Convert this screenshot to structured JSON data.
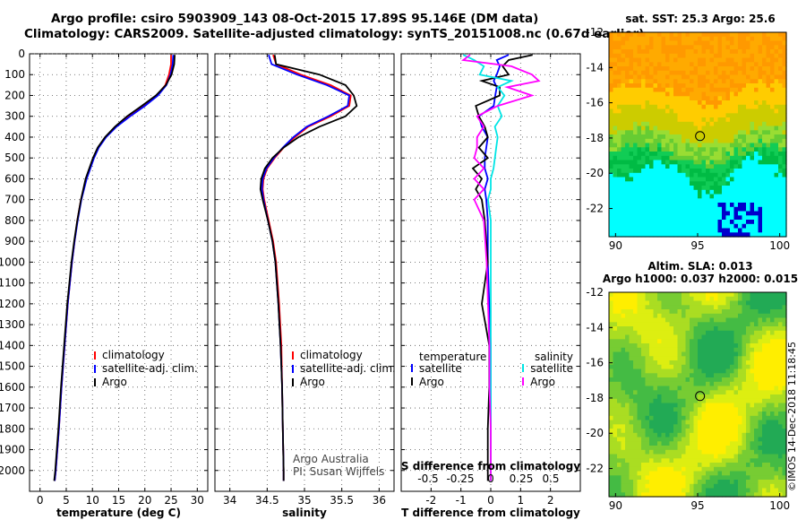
{
  "header": {
    "title_line1": "Argo profile: csiro 5903909_143 08-Oct-2015 17.89S 95.146E (DM data)",
    "title_line2": "Climatology: CARS2009. Satellite-adjusted climatology: synTS_20151008.nc (0.67d earlier)"
  },
  "footer": {
    "stamp": "©IMOS 14-Dec-2018 11:18:45"
  },
  "colors": {
    "climatology": "#ff0000",
    "satellite": "#0000ff",
    "argo": "#000000",
    "sal_satellite": "#00e5e5",
    "sal_argo": "#ff00ff"
  },
  "chart_data": [
    {
      "type": "line",
      "xlabel": "temperature (deg C)",
      "ylim": [
        0,
        2100
      ],
      "yticks": [
        0,
        100,
        200,
        300,
        400,
        500,
        600,
        700,
        800,
        900,
        1000,
        1100,
        1200,
        1300,
        1400,
        1500,
        1600,
        1700,
        1800,
        1900,
        2000
      ],
      "xlim": [
        -2,
        32
      ],
      "xticks": [
        0,
        5,
        10,
        15,
        20,
        25,
        30
      ],
      "legend": {
        "placement": "lower-center",
        "entries": [
          "climatology",
          "satellite-adj. clim.",
          "Argo"
        ]
      },
      "grid": true,
      "y_inverted": true,
      "depth": [
        5,
        50,
        100,
        150,
        200,
        250,
        300,
        350,
        400,
        450,
        500,
        600,
        700,
        800,
        900,
        1000,
        1200,
        1400,
        1600,
        1800,
        2000,
        2050
      ],
      "series": [
        {
          "name": "climatology",
          "values": [
            25.0,
            25.0,
            24.6,
            23.9,
            22.3,
            19.9,
            17.0,
            14.5,
            12.5,
            11.1,
            10.2,
            8.8,
            7.8,
            7.1,
            6.6,
            6.1,
            5.3,
            4.7,
            4.1,
            3.6,
            3.0,
            2.8
          ]
        },
        {
          "name": "satellite-adj. clim.",
          "values": [
            25.4,
            25.3,
            24.9,
            24.1,
            22.5,
            20.0,
            17.2,
            14.6,
            12.6,
            11.2,
            10.3,
            8.9,
            7.9,
            7.2,
            6.6,
            6.1,
            5.3,
            4.7,
            4.1,
            3.6,
            3.0,
            2.8
          ]
        },
        {
          "name": "Argo",
          "values": [
            25.7,
            25.6,
            25.1,
            24.0,
            22.1,
            19.4,
            16.6,
            14.3,
            12.4,
            11.0,
            10.1,
            8.7,
            7.8,
            7.1,
            6.5,
            6.0,
            5.2,
            4.6,
            4.0,
            3.5,
            2.9,
            2.7
          ]
        }
      ]
    },
    {
      "type": "line",
      "xlabel": "salinity",
      "ylim": [
        0,
        2100
      ],
      "xlim": [
        33.8,
        36.2
      ],
      "xticks": [
        34,
        34.5,
        35,
        35.5,
        36
      ],
      "legend": {
        "placement": "lower-center",
        "entries": [
          "climatology",
          "satellite-adj. clim.",
          "Argo"
        ]
      },
      "grid": true,
      "y_inverted": true,
      "annotation": [
        "Argo Australia",
        "PI: Susan Wijffels"
      ],
      "depth": [
        5,
        50,
        100,
        150,
        200,
        250,
        300,
        350,
        400,
        450,
        500,
        550,
        600,
        650,
        700,
        800,
        900,
        1000,
        1200,
        1400,
        1600,
        1800,
        2000,
        2050
      ],
      "series": [
        {
          "name": "climatology",
          "values": [
            34.58,
            34.62,
            34.95,
            35.35,
            35.62,
            35.6,
            35.35,
            35.05,
            34.87,
            34.72,
            34.6,
            34.5,
            34.45,
            34.44,
            34.46,
            34.52,
            34.58,
            34.62,
            34.66,
            34.69,
            34.7,
            34.71,
            34.72,
            34.72
          ]
        },
        {
          "name": "satellite-adj. clim.",
          "values": [
            34.52,
            34.56,
            34.9,
            35.3,
            35.6,
            35.58,
            35.32,
            35.03,
            34.85,
            34.71,
            34.59,
            34.49,
            34.44,
            34.43,
            34.45,
            34.51,
            34.57,
            34.61,
            34.65,
            34.68,
            34.7,
            34.71,
            34.72,
            34.72
          ]
        },
        {
          "name": "Argo",
          "values": [
            34.6,
            34.62,
            35.2,
            35.55,
            35.66,
            35.7,
            35.55,
            35.2,
            34.92,
            34.72,
            34.57,
            34.47,
            34.42,
            34.41,
            34.44,
            34.51,
            34.57,
            34.61,
            34.65,
            34.68,
            34.7,
            34.71,
            34.72,
            34.72
          ]
        }
      ]
    },
    {
      "type": "line",
      "xlabel": "T difference from climatology",
      "ylim": [
        0,
        2100
      ],
      "xlim": [
        -3,
        3
      ],
      "xticks": [
        -2,
        -1,
        0,
        1,
        2
      ],
      "top_axis_label": "S difference from climatology",
      "top_ticks": [
        "-0.5",
        "-0.25",
        "0",
        "0.25",
        "0.5"
      ],
      "legend": {
        "placement": "lower-center",
        "entries": [
          "temperature",
          "satellite",
          "Argo",
          "salinity",
          "satellite",
          "Argo"
        ]
      },
      "grid": true,
      "y_inverted": true,
      "depth": [
        5,
        30,
        60,
        100,
        130,
        160,
        200,
        250,
        300,
        350,
        400,
        450,
        500,
        550,
        600,
        650,
        700,
        800,
        1000,
        1200,
        1400,
        1600,
        1800,
        2000,
        2050
      ],
      "series": [
        {
          "name": "T satellite",
          "values": [
            0.6,
            0.2,
            0.3,
            0.2,
            0.1,
            0.2,
            0.15,
            0.1,
            -0.4,
            -0.3,
            -0.1,
            -0.15,
            -0.2,
            -0.2,
            -0.1,
            -0.2,
            -0.15,
            -0.1,
            -0.1,
            -0.05,
            0.0,
            0.0,
            0.0,
            0.0,
            0.0
          ]
        },
        {
          "name": "T Argo",
          "values": [
            1.4,
            0.6,
            0.4,
            0.6,
            -0.3,
            0.3,
            0.3,
            -0.5,
            -0.4,
            -0.2,
            -0.1,
            -0.4,
            -0.1,
            -0.6,
            -0.3,
            -0.5,
            -0.3,
            -0.2,
            -0.1,
            -0.3,
            -0.05,
            -0.05,
            -0.1,
            -0.1,
            -0.1
          ]
        },
        {
          "name": "S satellite",
          "values": [
            -0.2,
            -0.12,
            -0.05,
            -0.08,
            0.15,
            0.05,
            0.1,
            0.05,
            0.08,
            0.03,
            0.05,
            0.04,
            0.03,
            0.02,
            0.0,
            0.0,
            -0.02,
            0.0,
            0.0,
            0.0,
            0.0,
            0.0,
            0.0,
            0.0,
            0.0
          ]
        },
        {
          "name": "S Argo",
          "values": [
            -0.15,
            -0.2,
            0.15,
            0.3,
            0.35,
            0.12,
            0.3,
            0.05,
            -0.1,
            -0.05,
            -0.1,
            -0.1,
            -0.12,
            -0.05,
            -0.12,
            -0.05,
            -0.12,
            -0.05,
            -0.03,
            -0.02,
            -0.01,
            -0.01,
            0.0,
            0.0,
            0.0
          ]
        }
      ]
    },
    {
      "type": "heatmap",
      "title": "sat. SST: 25.3 Argo: 25.6",
      "xticks": [
        90,
        95,
        100
      ],
      "yticks": [
        -12,
        -14,
        -16,
        -18,
        -20,
        -22
      ],
      "xlim": [
        89.6,
        100.4
      ],
      "ylim": [
        -23.6,
        -12
      ],
      "marker": {
        "lon": 95.146,
        "lat": -17.89
      }
    },
    {
      "type": "heatmap",
      "title": "Altim. SLA: 0.013",
      "subtitle": "Argo h1000: 0.037 h2000: 0.015",
      "xticks": [
        90,
        95,
        100
      ],
      "yticks": [
        -12,
        -14,
        -16,
        -18,
        -20,
        -22
      ],
      "xlim": [
        89.6,
        100.4
      ],
      "ylim": [
        -23.6,
        -12
      ],
      "marker": {
        "lon": 95.146,
        "lat": -17.89
      }
    }
  ]
}
